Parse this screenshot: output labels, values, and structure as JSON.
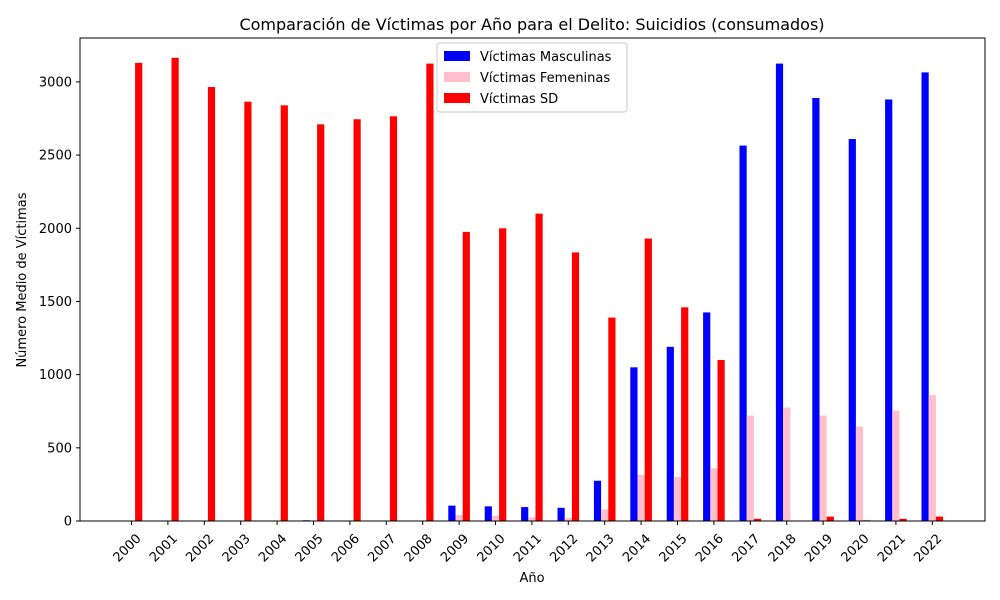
{
  "chart_data": {
    "type": "bar",
    "title": "Comparación de Víctimas por Año para el Delito: Suicidios (consumados)",
    "xlabel": "Año",
    "ylabel": "Número Medio de Víctimas",
    "ylim": [
      0,
      3300
    ],
    "yticks": [
      0,
      500,
      1000,
      1500,
      2000,
      2500,
      3000
    ],
    "grid": false,
    "legend_position": "top-center",
    "categories": [
      "2000",
      "2001",
      "2002",
      "2003",
      "2004",
      "2005",
      "2006",
      "2007",
      "2008",
      "2009",
      "2010",
      "2011",
      "2012",
      "2013",
      "2014",
      "2015",
      "2016",
      "2017",
      "2018",
      "2019",
      "2020",
      "2021",
      "2022"
    ],
    "series": [
      {
        "name": "Víctimas Masculinas",
        "color": "#0000ff",
        "values": [
          0,
          0,
          0,
          0,
          0,
          5,
          0,
          0,
          0,
          105,
          100,
          95,
          90,
          275,
          1050,
          1190,
          1425,
          2565,
          3125,
          2890,
          2610,
          2880,
          3065
        ]
      },
      {
        "name": "Víctimas Femeninas",
        "color": "#ffc0cb",
        "values": [
          0,
          0,
          0,
          0,
          0,
          0,
          0,
          0,
          0,
          40,
          35,
          25,
          20,
          80,
          315,
          300,
          360,
          720,
          775,
          720,
          645,
          755,
          860
        ]
      },
      {
        "name": "Víctimas SD",
        "color": "#ff0000",
        "values": [
          3130,
          3165,
          2965,
          2865,
          2840,
          2710,
          2745,
          2765,
          3125,
          1975,
          2000,
          2100,
          1835,
          1390,
          1930,
          1460,
          1100,
          15,
          0,
          30,
          5,
          15,
          30
        ]
      }
    ]
  }
}
